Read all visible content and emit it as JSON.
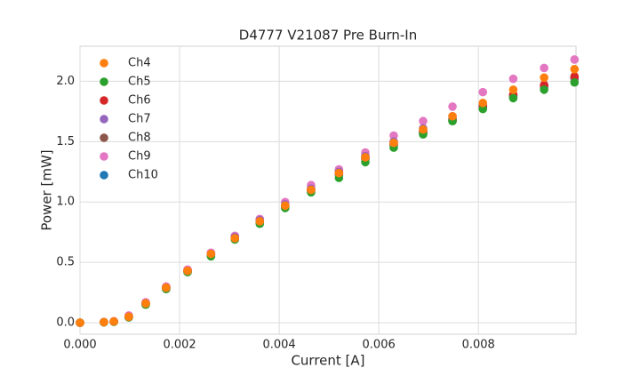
{
  "chart_data": {
    "type": "scatter",
    "title": "D4777 V21087 Pre Burn-In",
    "xlabel": "Current [A]",
    "ylabel": "Power [mW]",
    "x": [
      0,
      0.00048,
      0.00068,
      0.00098,
      0.00132,
      0.00173,
      0.00216,
      0.00263,
      0.00311,
      0.00361,
      0.00412,
      0.00464,
      0.0052,
      0.00573,
      0.0063,
      0.00689,
      0.00748,
      0.00809,
      0.0087,
      0.00932,
      0.00993
    ],
    "series": [
      {
        "name": "Ch4",
        "color": "#ff7f0e",
        "values": [
          0,
          0.005,
          0.01,
          0.05,
          0.16,
          0.29,
          0.43,
          0.57,
          0.7,
          0.84,
          0.97,
          1.1,
          1.24,
          1.37,
          1.49,
          1.6,
          1.71,
          1.82,
          1.93,
          2.03,
          2.1
        ]
      },
      {
        "name": "Ch5",
        "color": "#2ca02c",
        "values": [
          0,
          0.004,
          0.008,
          0.045,
          0.15,
          0.28,
          0.42,
          0.55,
          0.69,
          0.82,
          0.95,
          1.08,
          1.2,
          1.33,
          1.45,
          1.56,
          1.67,
          1.77,
          1.86,
          1.93,
          1.99
        ]
      },
      {
        "name": "Ch6",
        "color": "#d62728",
        "values": [
          0,
          0.005,
          0.01,
          0.05,
          0.16,
          0.29,
          0.43,
          0.56,
          0.7,
          0.84,
          0.96,
          1.1,
          1.24,
          1.37,
          1.48,
          1.58,
          1.68,
          1.79,
          1.89,
          1.97,
          2.04
        ]
      },
      {
        "name": "Ch7",
        "color": "#9467bd",
        "values": [
          0,
          0.005,
          0.01,
          0.05,
          0.16,
          0.29,
          0.43,
          0.57,
          0.71,
          0.85,
          0.98,
          1.11,
          1.25,
          1.38,
          1.5,
          1.61,
          1.71,
          1.8,
          1.88,
          1.96,
          2.03
        ]
      },
      {
        "name": "Ch8",
        "color": "#8c564b",
        "values": [
          0,
          0.004,
          0.008,
          0.045,
          0.15,
          0.28,
          0.42,
          0.56,
          0.69,
          0.83,
          0.96,
          1.09,
          1.23,
          1.36,
          1.47,
          1.57,
          1.67,
          1.78,
          1.87,
          1.95,
          2.02
        ]
      },
      {
        "name": "Ch9",
        "color": "#e377c2",
        "values": [
          0,
          0.006,
          0.012,
          0.06,
          0.17,
          0.3,
          0.44,
          0.58,
          0.72,
          0.86,
          1.0,
          1.14,
          1.27,
          1.41,
          1.55,
          1.67,
          1.79,
          1.91,
          2.02,
          2.11,
          2.18
        ]
      },
      {
        "name": "Ch10",
        "color": "#1f77b4",
        "values": [
          0,
          0.005,
          0.01,
          0.05,
          0.16,
          0.29,
          0.43,
          0.57,
          0.7,
          0.84,
          0.97,
          1.1,
          1.23,
          1.36,
          1.48,
          1.59,
          1.69,
          1.79,
          1.88,
          1.96,
          2.03
        ]
      }
    ],
    "xlim": [
      0,
      0.00996
    ],
    "ylim": [
      -0.095,
      2.29
    ],
    "xticks": [
      {
        "value": 0,
        "label": "0.000"
      },
      {
        "value": 0.002,
        "label": "0.002"
      },
      {
        "value": 0.004,
        "label": "0.004"
      },
      {
        "value": 0.006,
        "label": "0.006"
      },
      {
        "value": 0.008,
        "label": "0.008"
      }
    ],
    "yticks": [
      {
        "value": 0,
        "label": "0.0"
      },
      0.5,
      {
        "value": 1,
        "label": "1.0"
      },
      1.5,
      {
        "value": 2,
        "label": "2.0"
      }
    ],
    "grid": true,
    "legend": "upper left"
  }
}
